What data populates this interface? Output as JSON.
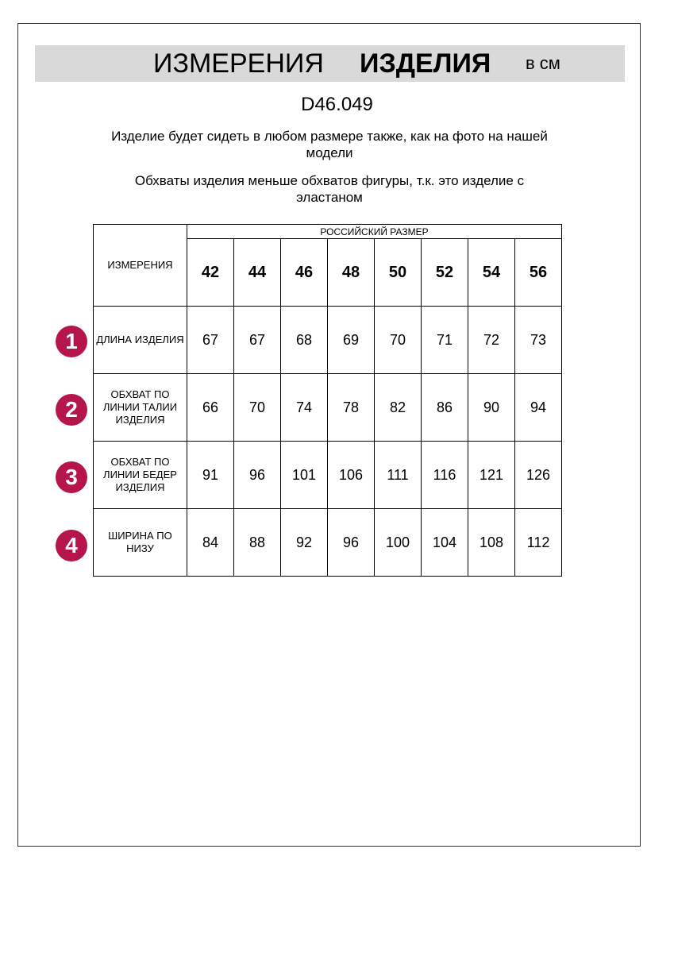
{
  "header": {
    "title_part1": "ИЗМЕРЕНИЯ",
    "title_part2": "ИЗДЕЛИЯ",
    "unit": "в см"
  },
  "product_code": "D46.049",
  "notes": [
    "Изделие будет сидеть в любом размере также, как на фото на нашей модели",
    "Обхваты изделия меньше обхватов фигуры, т.к. это изделие с эластаном"
  ],
  "colors": {
    "badge": "#b5154b",
    "band": "#d9d9d9"
  },
  "table": {
    "corner_label": "ИЗМЕРЕНИЯ",
    "group_header": "РОССИЙСКИЙ РАЗМЕР",
    "sizes": [
      "42",
      "44",
      "46",
      "48",
      "50",
      "52",
      "54",
      "56"
    ],
    "rows": [
      {
        "number": "1",
        "label": "ДЛИНА ИЗДЕЛИЯ",
        "values": [
          "67",
          "67",
          "68",
          "69",
          "70",
          "71",
          "72",
          "73"
        ]
      },
      {
        "number": "2",
        "label": "ОБХВАТ ПО ЛИНИИ ТАЛИИ ИЗДЕЛИЯ",
        "values": [
          "66",
          "70",
          "74",
          "78",
          "82",
          "86",
          "90",
          "94"
        ]
      },
      {
        "number": "3",
        "label": "ОБХВАТ ПО ЛИНИИ БЕДЕР ИЗДЕЛИЯ",
        "values": [
          "91",
          "96",
          "101",
          "106",
          "111",
          "116",
          "121",
          "126"
        ]
      },
      {
        "number": "4",
        "label": "ШИРИНА ПО НИЗУ",
        "values": [
          "84",
          "88",
          "92",
          "96",
          "100",
          "104",
          "108",
          "112"
        ]
      }
    ]
  }
}
